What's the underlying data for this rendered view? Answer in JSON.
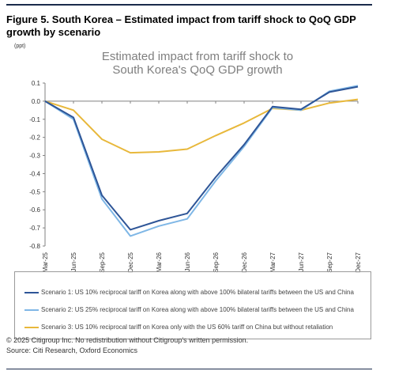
{
  "figure_title": "Figure 5. South Korea – Estimated impact from tariff shock to QoQ GDP growth by scenario",
  "unit_label": "(ppt)",
  "copyright": "© 2025 Citigroup Inc. No redistribution without Citigroup’s written permission.",
  "source": "Source: Citi Research, Oxford Economics",
  "colors": {
    "scenario1": "#2e5597",
    "scenario2": "#7fb7e6",
    "scenario3": "#e8b83b",
    "grid": "#d0d0d0",
    "axis": "#808080"
  },
  "chart_data": {
    "type": "line",
    "title": "Estimated impact from tariff shock to South Korea's QoQ GDP growth",
    "title_lines": [
      "Estimated impact from tariff shock to",
      "South Korea's QoQ GDP growth"
    ],
    "x": [
      "Mar-25",
      "Jun-25",
      "Sep-25",
      "Dec-25",
      "Mar-26",
      "Jun-26",
      "Sep-26",
      "Dec-26",
      "Mar-27",
      "Jun-27",
      "Sep-27",
      "Dec-27"
    ],
    "xlabel": "",
    "ylabel": "(ppt)",
    "ylim": [
      -0.8,
      0.1
    ],
    "yticks": [
      "-0.8",
      "-0.7",
      "-0.6",
      "-0.5",
      "-0.4",
      "-0.3",
      "-0.2",
      "-0.1",
      "0.0",
      "0.1"
    ],
    "grid": false,
    "series": [
      {
        "name": "Scenario 1: US 10% reciprocal tariff on Korea along with above 100% bilateral tariffs between the US and China",
        "values": [
          0.0,
          -0.09,
          -0.52,
          -0.71,
          -0.66,
          -0.62,
          -0.42,
          -0.24,
          -0.03,
          -0.045,
          0.05,
          0.08
        ]
      },
      {
        "name": "Scenario 2: US 25% reciprocal tariff on Korea along with above 100% bilateral tariffs between the US and China",
        "values": [
          0.0,
          -0.1,
          -0.54,
          -0.745,
          -0.69,
          -0.65,
          -0.44,
          -0.25,
          -0.035,
          -0.05,
          0.055,
          0.085
        ]
      },
      {
        "name": "Scenario 3: US 10% reciprocal tariff on Korea only with the US 60% tariff on China but without retaliation",
        "values": [
          0.0,
          -0.05,
          -0.21,
          -0.285,
          -0.28,
          -0.265,
          -0.19,
          -0.12,
          -0.04,
          -0.05,
          -0.01,
          0.01
        ]
      }
    ]
  }
}
